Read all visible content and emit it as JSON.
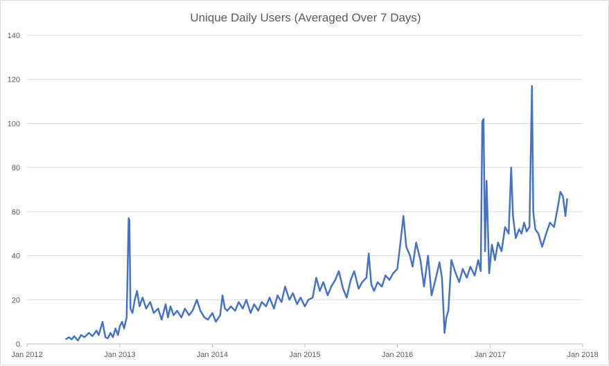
{
  "chart_data": {
    "type": "line",
    "title": "Unique Daily Users (Averaged Over 7 Days)",
    "xlabel": "",
    "ylabel": "",
    "ylim": [
      0,
      140
    ],
    "yticks": [
      0,
      20,
      40,
      60,
      80,
      100,
      120,
      140
    ],
    "xlim": [
      "2012-01-01",
      "2018-01-01"
    ],
    "xticks": [
      {
        "date": "2012-01-01",
        "label": "Jan 2012"
      },
      {
        "date": "2013-01-01",
        "label": "Jan 2013"
      },
      {
        "date": "2014-01-01",
        "label": "Jan 2014"
      },
      {
        "date": "2015-01-01",
        "label": "Jan 2015"
      },
      {
        "date": "2016-01-01",
        "label": "Jan 2016"
      },
      {
        "date": "2017-01-01",
        "label": "Jan 2017"
      },
      {
        "date": "2018-01-01",
        "label": "Jan 2018"
      }
    ],
    "grid": {
      "horizontal": true,
      "vertical": false
    },
    "legend": "none",
    "series": [
      {
        "color": "#4472c4",
        "points": [
          [
            "2012-06-01",
            2
          ],
          [
            "2012-06-15",
            3
          ],
          [
            "2012-06-25",
            2
          ],
          [
            "2012-07-05",
            3.5
          ],
          [
            "2012-07-20",
            1.5
          ],
          [
            "2012-08-01",
            4
          ],
          [
            "2012-08-15",
            3
          ],
          [
            "2012-09-01",
            5
          ],
          [
            "2012-09-15",
            3.5
          ],
          [
            "2012-10-01",
            6
          ],
          [
            "2012-10-10",
            4
          ],
          [
            "2012-10-25",
            10
          ],
          [
            "2012-11-05",
            3
          ],
          [
            "2012-11-15",
            2.5
          ],
          [
            "2012-11-25",
            5
          ],
          [
            "2012-12-05",
            3
          ],
          [
            "2012-12-15",
            7
          ],
          [
            "2012-12-25",
            4
          ],
          [
            "2013-01-01",
            8
          ],
          [
            "2013-01-10",
            10
          ],
          [
            "2013-01-18",
            7
          ],
          [
            "2013-01-28",
            12
          ],
          [
            "2013-02-05",
            57
          ],
          [
            "2013-02-08",
            56
          ],
          [
            "2013-02-12",
            16
          ],
          [
            "2013-02-20",
            14
          ],
          [
            "2013-03-01",
            20
          ],
          [
            "2013-03-10",
            24
          ],
          [
            "2013-03-20",
            17
          ],
          [
            "2013-04-01",
            21
          ],
          [
            "2013-04-15",
            16
          ],
          [
            "2013-05-01",
            19
          ],
          [
            "2013-05-15",
            14
          ],
          [
            "2013-06-01",
            16
          ],
          [
            "2013-06-15",
            11
          ],
          [
            "2013-07-01",
            18
          ],
          [
            "2013-07-10",
            12
          ],
          [
            "2013-07-20",
            17
          ],
          [
            "2013-08-01",
            13
          ],
          [
            "2013-08-15",
            15
          ],
          [
            "2013-09-01",
            12
          ],
          [
            "2013-09-15",
            16
          ],
          [
            "2013-10-01",
            13
          ],
          [
            "2013-10-15",
            15
          ],
          [
            "2013-11-01",
            20
          ],
          [
            "2013-11-15",
            15
          ],
          [
            "2013-12-01",
            12
          ],
          [
            "2013-12-15",
            11
          ],
          [
            "2014-01-01",
            14
          ],
          [
            "2014-01-15",
            10
          ],
          [
            "2014-02-01",
            13
          ],
          [
            "2014-02-10",
            22
          ],
          [
            "2014-02-20",
            16
          ],
          [
            "2014-03-01",
            15
          ],
          [
            "2014-03-15",
            17
          ],
          [
            "2014-04-01",
            15
          ],
          [
            "2014-04-15",
            19
          ],
          [
            "2014-05-01",
            16
          ],
          [
            "2014-05-15",
            20
          ],
          [
            "2014-06-01",
            14
          ],
          [
            "2014-06-15",
            18
          ],
          [
            "2014-07-01",
            15
          ],
          [
            "2014-07-15",
            19
          ],
          [
            "2014-08-01",
            17
          ],
          [
            "2014-08-15",
            21
          ],
          [
            "2014-09-01",
            16
          ],
          [
            "2014-09-15",
            22
          ],
          [
            "2014-10-01",
            19
          ],
          [
            "2014-10-15",
            26
          ],
          [
            "2014-11-01",
            20
          ],
          [
            "2014-11-15",
            23
          ],
          [
            "2014-12-01",
            18
          ],
          [
            "2014-12-15",
            21
          ],
          [
            "2015-01-01",
            17
          ],
          [
            "2015-01-15",
            20
          ],
          [
            "2015-02-01",
            21
          ],
          [
            "2015-02-15",
            30
          ],
          [
            "2015-03-01",
            24
          ],
          [
            "2015-03-15",
            28
          ],
          [
            "2015-04-01",
            22
          ],
          [
            "2015-04-15",
            26
          ],
          [
            "2015-05-01",
            29
          ],
          [
            "2015-05-15",
            33
          ],
          [
            "2015-06-01",
            25
          ],
          [
            "2015-06-15",
            21
          ],
          [
            "2015-07-01",
            29
          ],
          [
            "2015-07-15",
            33
          ],
          [
            "2015-08-01",
            25
          ],
          [
            "2015-08-15",
            28
          ],
          [
            "2015-09-01",
            30
          ],
          [
            "2015-09-10",
            41
          ],
          [
            "2015-09-20",
            27
          ],
          [
            "2015-10-01",
            24
          ],
          [
            "2015-10-15",
            28
          ],
          [
            "2015-11-01",
            26
          ],
          [
            "2015-11-15",
            31
          ],
          [
            "2015-12-01",
            29
          ],
          [
            "2015-12-15",
            32
          ],
          [
            "2016-01-01",
            34
          ],
          [
            "2016-01-15",
            48
          ],
          [
            "2016-01-25",
            58
          ],
          [
            "2016-02-05",
            44
          ],
          [
            "2016-02-20",
            40
          ],
          [
            "2016-03-01",
            35
          ],
          [
            "2016-03-15",
            46
          ],
          [
            "2016-04-01",
            38
          ],
          [
            "2016-04-15",
            26
          ],
          [
            "2016-05-01",
            40
          ],
          [
            "2016-05-15",
            22
          ],
          [
            "2016-06-01",
            30
          ],
          [
            "2016-06-15",
            37
          ],
          [
            "2016-06-25",
            30
          ],
          [
            "2016-07-05",
            5
          ],
          [
            "2016-07-12",
            12
          ],
          [
            "2016-07-20",
            15
          ],
          [
            "2016-08-01",
            38
          ],
          [
            "2016-08-15",
            33
          ],
          [
            "2016-09-01",
            28
          ],
          [
            "2016-09-15",
            34
          ],
          [
            "2016-10-01",
            30
          ],
          [
            "2016-10-15",
            35
          ],
          [
            "2016-11-01",
            31
          ],
          [
            "2016-11-15",
            38
          ],
          [
            "2016-11-25",
            33
          ],
          [
            "2016-12-01",
            101
          ],
          [
            "2016-12-06",
            102
          ],
          [
            "2016-12-12",
            42
          ],
          [
            "2016-12-18",
            74
          ],
          [
            "2016-12-28",
            32
          ],
          [
            "2017-01-08",
            45
          ],
          [
            "2017-01-20",
            38
          ],
          [
            "2017-02-01",
            46
          ],
          [
            "2017-02-15",
            42
          ],
          [
            "2017-03-01",
            53
          ],
          [
            "2017-03-15",
            50
          ],
          [
            "2017-03-25",
            80
          ],
          [
            "2017-04-01",
            58
          ],
          [
            "2017-04-12",
            48
          ],
          [
            "2017-04-25",
            52
          ],
          [
            "2017-05-05",
            50
          ],
          [
            "2017-05-15",
            55
          ],
          [
            "2017-05-25",
            51
          ],
          [
            "2017-06-05",
            53
          ],
          [
            "2017-06-15",
            117
          ],
          [
            "2017-06-20",
            60
          ],
          [
            "2017-06-28",
            52
          ],
          [
            "2017-07-10",
            50
          ],
          [
            "2017-07-25",
            44
          ],
          [
            "2017-08-10",
            50
          ],
          [
            "2017-08-25",
            55
          ],
          [
            "2017-09-10",
            53
          ],
          [
            "2017-09-25",
            62
          ],
          [
            "2017-10-05",
            69
          ],
          [
            "2017-10-15",
            67
          ],
          [
            "2017-10-25",
            58
          ],
          [
            "2017-11-01",
            66
          ]
        ]
      }
    ]
  }
}
